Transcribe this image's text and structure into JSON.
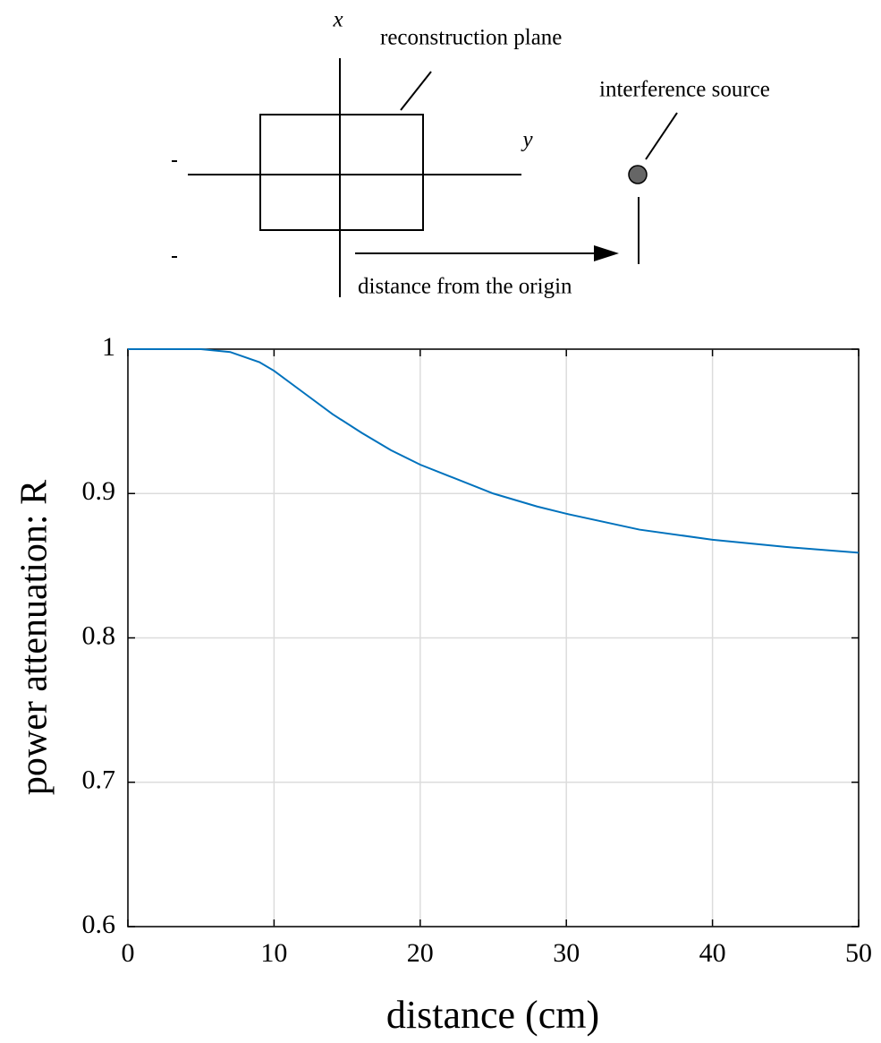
{
  "diagram": {
    "x_axis": "x",
    "y_axis": "y",
    "plane": "reconstruction plane",
    "source": "interference source",
    "distance": "distance from the origin"
  },
  "chart_data": {
    "type": "line",
    "xlabel": "distance (cm)",
    "ylabel": "power attenuation: R",
    "x": [
      0,
      2.5,
      5,
      7,
      9,
      10,
      12,
      14,
      16,
      18,
      20,
      22,
      25,
      28,
      30,
      35,
      40,
      45,
      50
    ],
    "values": [
      1,
      1,
      1,
      0.998,
      0.991,
      0.985,
      0.97,
      0.955,
      0.942,
      0.93,
      0.92,
      0.912,
      0.9,
      0.891,
      0.886,
      0.875,
      0.868,
      0.863,
      0.859
    ],
    "color": "#0072bd",
    "xlim": [
      0,
      50
    ],
    "xticks": [
      0,
      10,
      20,
      30,
      40,
      50
    ],
    "ylim": [
      0.6,
      1
    ],
    "yticks": [
      0.6,
      0.7,
      0.8,
      0.9,
      1
    ],
    "grid": true
  }
}
